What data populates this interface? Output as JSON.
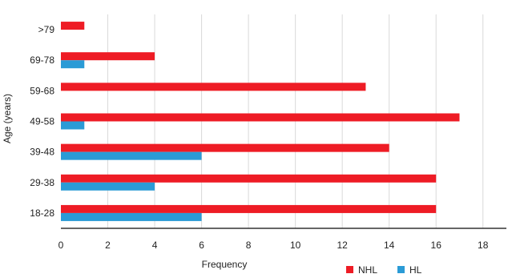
{
  "chart_data": {
    "type": "bar",
    "orientation": "horizontal",
    "categories": [
      "18-28",
      "29-38",
      "39-48",
      "49-58",
      "59-68",
      "69-78",
      ">79"
    ],
    "series": [
      {
        "name": "NHL",
        "color": "#ee1c25",
        "values": [
          16,
          16,
          14,
          17,
          13,
          4,
          1
        ]
      },
      {
        "name": "HL",
        "color": "#2b9bd6",
        "values": [
          6,
          4,
          6,
          1,
          0,
          1,
          0
        ]
      }
    ],
    "xlabel": "Frequency",
    "ylabel": "Age (years)",
    "xlim": [
      0,
      19
    ],
    "xticks": [
      "0",
      "2",
      "4",
      "6",
      "8",
      "10",
      "12",
      "14",
      "16",
      "18"
    ],
    "grid": "vertical",
    "legend": {
      "placement": "bottom-right",
      "items": [
        "NHL",
        "HL"
      ]
    }
  }
}
